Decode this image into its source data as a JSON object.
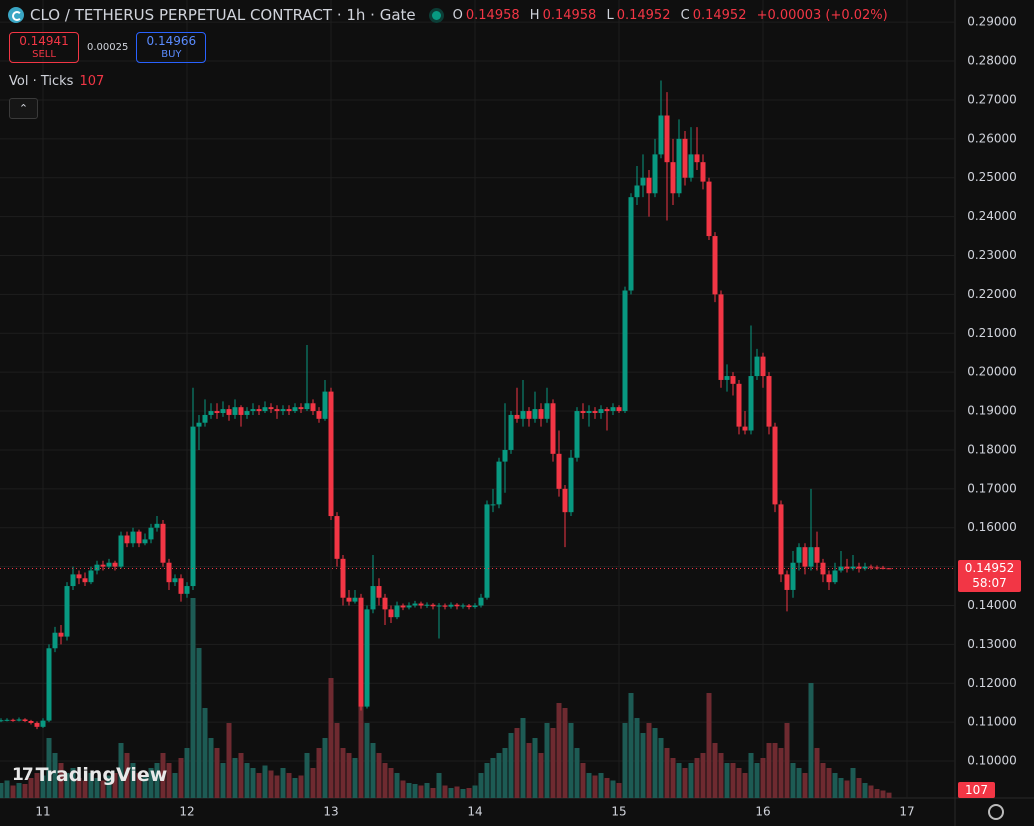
{
  "header": {
    "symbol": "CLO / TETHERUS PERPETUAL CONTRACT · 1h · Gate",
    "ohlc_letters": [
      "O",
      "H",
      "L",
      "C"
    ],
    "change": "+0.00003 (+0.02%)"
  },
  "trade_panel": {
    "sell_price": "0.14941",
    "sell_label": "SELL",
    "spread": "0.00025",
    "buy_price": "0.14966",
    "buy_label": "BUY"
  },
  "indicator": {
    "name": "Vol · Ticks"
  },
  "countdown": "58:07",
  "brand": "TradingView",
  "chart_data": {
    "type": "candlestick",
    "categories": [
      null,
      null,
      null,
      null,
      null,
      null,
      null,
      "11",
      null,
      null,
      null,
      null,
      null,
      null,
      null,
      null,
      null,
      null,
      null,
      null,
      null,
      null,
      null,
      null,
      null,
      null,
      null,
      null,
      null,
      null,
      null,
      "12",
      null,
      null,
      null,
      null,
      null,
      null,
      null,
      null,
      null,
      null,
      null,
      null,
      null,
      null,
      null,
      null,
      null,
      null,
      null,
      null,
      null,
      null,
      null,
      "13",
      null,
      null,
      null,
      null,
      null,
      null,
      null,
      null,
      null,
      null,
      null,
      null,
      null,
      null,
      null,
      null,
      null,
      null,
      null,
      null,
      null,
      null,
      null,
      "14",
      null,
      null,
      null,
      null,
      null,
      null,
      null,
      null,
      null,
      null,
      null,
      null,
      null,
      null,
      null,
      null,
      null,
      null,
      null,
      null,
      null,
      null,
      null,
      "15",
      null,
      null,
      null,
      null,
      null,
      null,
      null,
      null,
      null,
      null,
      null,
      null,
      null,
      null,
      null,
      null,
      null,
      null,
      null,
      null,
      null,
      null,
      null,
      "16",
      null,
      null,
      null,
      null,
      null,
      null,
      null,
      null,
      null,
      null,
      null,
      null,
      null,
      null,
      null,
      null,
      null,
      null,
      null,
      null,
      null,
      null,
      null,
      "17"
    ],
    "open": [
      0.1104,
      0.1105,
      0.1106,
      0.1104,
      0.1107,
      0.1103,
      0.1098,
      0.1088,
      0.1104,
      0.129,
      0.133,
      0.132,
      0.145,
      0.148,
      0.147,
      0.146,
      0.149,
      0.1505,
      0.15,
      0.151,
      0.15,
      0.158,
      0.156,
      0.159,
      0.156,
      0.157,
      0.16,
      0.161,
      0.151,
      0.146,
      0.147,
      0.143,
      0.145,
      0.186,
      0.187,
      0.189,
      0.19,
      0.1895,
      0.1905,
      0.189,
      0.191,
      0.189,
      0.19,
      0.1905,
      0.19,
      0.191,
      0.1905,
      0.19,
      0.1905,
      0.19,
      0.191,
      0.1905,
      0.192,
      0.19,
      0.188,
      0.195,
      0.163,
      0.152,
      0.142,
      0.141,
      0.142,
      0.114,
      0.139,
      0.145,
      0.142,
      0.139,
      0.137,
      0.14,
      0.1395,
      0.14,
      0.1405,
      0.14,
      0.1402,
      0.1398,
      0.14,
      0.1397,
      0.1402,
      0.1398,
      0.14,
      0.1396,
      0.14,
      0.142,
      0.166,
      0.166,
      0.177,
      0.18,
      0.189,
      0.188,
      0.19,
      0.188,
      0.1905,
      0.188,
      0.192,
      0.179,
      0.17,
      0.164,
      0.178,
      0.19,
      0.1895,
      0.19,
      0.1895,
      0.1905,
      0.19,
      0.191,
      0.19,
      0.221,
      0.245,
      0.248,
      0.25,
      0.246,
      0.256,
      0.266,
      0.254,
      0.246,
      0.26,
      0.25,
      0.256,
      0.254,
      0.249,
      0.235,
      0.22,
      0.198,
      0.199,
      0.197,
      0.186,
      0.185,
      0.199,
      0.204,
      0.199,
      0.186,
      0.166,
      0.148,
      0.144,
      0.151,
      0.155,
      0.15,
      0.155,
      0.151,
      0.148,
      0.146,
      0.149,
      0.15,
      0.1495,
      0.15,
      0.1495,
      0.15,
      0.1498,
      0.1497,
      0.14958,
      null,
      null,
      null
    ],
    "high": [
      0.111,
      0.111,
      0.1109,
      0.1112,
      0.111,
      0.1106,
      0.1102,
      0.111,
      0.13,
      0.1345,
      0.135,
      0.146,
      0.15,
      0.149,
      0.1485,
      0.15,
      0.1515,
      0.1515,
      0.152,
      0.1515,
      0.159,
      0.159,
      0.16,
      0.1595,
      0.1585,
      0.161,
      0.163,
      0.162,
      0.152,
      0.148,
      0.148,
      0.146,
      0.196,
      0.189,
      0.193,
      0.192,
      0.192,
      0.1925,
      0.1915,
      0.193,
      0.1915,
      0.191,
      0.192,
      0.1915,
      0.1925,
      0.192,
      0.1915,
      0.1915,
      0.1915,
      0.192,
      0.192,
      0.207,
      0.193,
      0.191,
      0.198,
      0.196,
      0.164,
      0.153,
      0.144,
      0.144,
      0.143,
      0.14,
      0.153,
      0.147,
      0.143,
      0.14,
      0.141,
      0.1405,
      0.1408,
      0.1412,
      0.141,
      0.1408,
      0.1406,
      0.1406,
      0.1405,
      0.1408,
      0.1406,
      0.1405,
      0.1404,
      0.1406,
      0.143,
      0.167,
      0.17,
      0.178,
      0.192,
      0.19,
      0.196,
      0.198,
      0.191,
      0.195,
      0.192,
      0.196,
      0.193,
      0.185,
      0.171,
      0.18,
      0.191,
      0.192,
      0.1915,
      0.191,
      0.1915,
      0.191,
      0.192,
      0.1915,
      0.222,
      0.246,
      0.253,
      0.256,
      0.252,
      0.26,
      0.275,
      0.272,
      0.26,
      0.265,
      0.262,
      0.263,
      0.263,
      0.256,
      0.25,
      0.236,
      0.221,
      0.202,
      0.2,
      0.198,
      0.19,
      0.212,
      0.206,
      0.205,
      0.2,
      0.187,
      0.167,
      0.149,
      0.154,
      0.156,
      0.156,
      0.17,
      0.159,
      0.152,
      0.149,
      0.151,
      0.154,
      0.152,
      0.153,
      0.151,
      0.151,
      0.1505,
      0.1503,
      0.1502,
      0.14958,
      null,
      null,
      null
    ],
    "low": [
      0.11,
      0.1102,
      0.1101,
      0.1102,
      0.11,
      0.1094,
      0.1082,
      0.1085,
      0.11,
      0.128,
      0.13,
      0.131,
      0.144,
      0.1455,
      0.145,
      0.1455,
      0.148,
      0.149,
      0.1495,
      0.149,
      0.1495,
      0.155,
      0.155,
      0.155,
      0.1555,
      0.156,
      0.159,
      0.15,
      0.144,
      0.145,
      0.141,
      0.142,
      0.144,
      0.18,
      0.186,
      0.188,
      0.188,
      0.1885,
      0.1875,
      0.188,
      0.186,
      0.188,
      0.189,
      0.189,
      0.1895,
      0.1895,
      0.188,
      0.189,
      0.189,
      0.1895,
      0.1895,
      0.19,
      0.189,
      0.187,
      0.1875,
      0.162,
      0.15,
      0.14,
      0.14,
      0.1405,
      0.113,
      0.1135,
      0.138,
      0.14,
      0.135,
      0.1355,
      0.1365,
      0.1388,
      0.139,
      0.1395,
      0.1392,
      0.1394,
      0.139,
      0.1315,
      0.139,
      0.1392,
      0.139,
      0.1392,
      0.139,
      0.1392,
      0.1395,
      0.1415,
      0.164,
      0.165,
      0.169,
      0.179,
      0.187,
      0.186,
      0.186,
      0.187,
      0.186,
      0.187,
      0.177,
      0.168,
      0.155,
      0.163,
      0.177,
      0.188,
      0.186,
      0.188,
      0.188,
      0.185,
      0.189,
      0.1895,
      0.1895,
      0.22,
      0.243,
      0.245,
      0.24,
      0.245,
      0.255,
      0.239,
      0.243,
      0.245,
      0.248,
      0.249,
      0.252,
      0.247,
      0.234,
      0.218,
      0.196,
      0.195,
      0.194,
      0.184,
      0.184,
      0.184,
      0.198,
      0.196,
      0.184,
      0.164,
      0.146,
      0.1385,
      0.142,
      0.149,
      0.148,
      0.149,
      0.149,
      0.146,
      0.144,
      0.1455,
      0.1485,
      0.1485,
      0.149,
      0.1485,
      0.149,
      0.1492,
      0.1492,
      0.1493,
      0.14952,
      null,
      null,
      null
    ],
    "close": [
      0.1105,
      0.1106,
      0.1104,
      0.1107,
      0.1103,
      0.1098,
      0.1088,
      0.1104,
      0.129,
      0.133,
      0.132,
      0.145,
      0.148,
      0.147,
      0.146,
      0.149,
      0.1505,
      0.15,
      0.151,
      0.15,
      0.158,
      0.156,
      0.159,
      0.156,
      0.157,
      0.16,
      0.161,
      0.151,
      0.146,
      0.147,
      0.143,
      0.145,
      0.186,
      0.187,
      0.189,
      0.19,
      0.1895,
      0.1905,
      0.189,
      0.191,
      0.189,
      0.19,
      0.1905,
      0.19,
      0.191,
      0.1905,
      0.19,
      0.1905,
      0.19,
      0.191,
      0.1905,
      0.192,
      0.19,
      0.188,
      0.195,
      0.163,
      0.152,
      0.142,
      0.141,
      0.142,
      0.114,
      0.139,
      0.145,
      0.142,
      0.139,
      0.137,
      0.14,
      0.1395,
      0.14,
      0.1405,
      0.14,
      0.1402,
      0.1398,
      0.14,
      0.1397,
      0.1402,
      0.1398,
      0.14,
      0.1396,
      0.14,
      0.142,
      0.166,
      0.166,
      0.177,
      0.18,
      0.189,
      0.188,
      0.19,
      0.188,
      0.1905,
      0.188,
      0.192,
      0.179,
      0.17,
      0.164,
      0.178,
      0.19,
      0.1895,
      0.19,
      0.1895,
      0.1905,
      0.19,
      0.191,
      0.19,
      0.221,
      0.245,
      0.248,
      0.25,
      0.246,
      0.256,
      0.266,
      0.254,
      0.246,
      0.26,
      0.25,
      0.256,
      0.254,
      0.249,
      0.235,
      0.22,
      0.198,
      0.199,
      0.197,
      0.186,
      0.185,
      0.199,
      0.204,
      0.199,
      0.186,
      0.166,
      0.148,
      0.144,
      0.151,
      0.155,
      0.15,
      0.155,
      0.151,
      0.148,
      0.146,
      0.149,
      0.15,
      0.1495,
      0.15,
      0.1495,
      0.15,
      0.1498,
      0.1497,
      0.14958,
      0.14952,
      null,
      null,
      null
    ],
    "volume": [
      300,
      350,
      250,
      300,
      280,
      400,
      500,
      450,
      1200,
      900,
      700,
      500,
      600,
      400,
      350,
      500,
      400,
      350,
      450,
      500,
      1100,
      900,
      700,
      500,
      450,
      600,
      700,
      900,
      700,
      500,
      800,
      1000,
      4000,
      3000,
      1800,
      1200,
      1000,
      700,
      1500,
      800,
      900,
      700,
      600,
      500,
      650,
      550,
      450,
      600,
      500,
      400,
      450,
      900,
      600,
      1000,
      1200,
      2400,
      1500,
      1000,
      900,
      800,
      2300,
      1500,
      1100,
      900,
      700,
      600,
      500,
      350,
      300,
      280,
      250,
      300,
      200,
      500,
      250,
      200,
      230,
      180,
      200,
      250,
      500,
      700,
      800,
      900,
      1000,
      1300,
      1400,
      1600,
      1100,
      1200,
      900,
      1500,
      1400,
      1900,
      1800,
      1500,
      1000,
      700,
      500,
      450,
      500,
      400,
      350,
      300,
      1500,
      2100,
      1600,
      1300,
      1500,
      1400,
      1200,
      1000,
      800,
      700,
      600,
      700,
      800,
      900,
      2100,
      1100,
      900,
      700,
      700,
      600,
      500,
      900,
      700,
      800,
      1100,
      1100,
      1000,
      1500,
      700,
      600,
      500,
      2300,
      1000,
      700,
      600,
      500,
      400,
      350,
      600,
      400,
      300,
      250,
      180,
      150,
      107,
      null,
      null,
      null
    ],
    "up_color": "#089981",
    "down_color": "#f23645",
    "up_volume_color": "#1d5b54",
    "down_volume_color": "#6e2a30",
    "ylim": [
      0.0905,
      0.2957
    ],
    "yticks": [
      {
        "value": 0.1,
        "label": "0.10000"
      },
      {
        "value": 0.11,
        "label": "0.11000"
      },
      {
        "value": 0.12,
        "label": "0.12000"
      },
      {
        "value": 0.13,
        "label": "0.13000"
      },
      {
        "value": 0.14,
        "label": "0.14000"
      },
      {
        "value": 0.15,
        "label": "0.15000"
      },
      {
        "value": 0.16,
        "label": "0.16000"
      },
      {
        "value": 0.17,
        "label": "0.17000"
      },
      {
        "value": 0.18,
        "label": "0.18000"
      },
      {
        "value": 0.19,
        "label": "0.19000"
      },
      {
        "value": 0.2,
        "label": "0.20000"
      },
      {
        "value": 0.21,
        "label": "0.21000"
      },
      {
        "value": 0.22,
        "label": "0.22000"
      },
      {
        "value": 0.23,
        "label": "0.23000"
      },
      {
        "value": 0.24,
        "label": "0.24000"
      },
      {
        "value": 0.25,
        "label": "0.25000"
      },
      {
        "value": 0.26,
        "label": "0.26000"
      },
      {
        "value": 0.27,
        "label": "0.27000"
      },
      {
        "value": 0.28,
        "label": "0.28000"
      },
      {
        "value": 0.29,
        "label": "0.29000"
      }
    ],
    "grid": true
  }
}
